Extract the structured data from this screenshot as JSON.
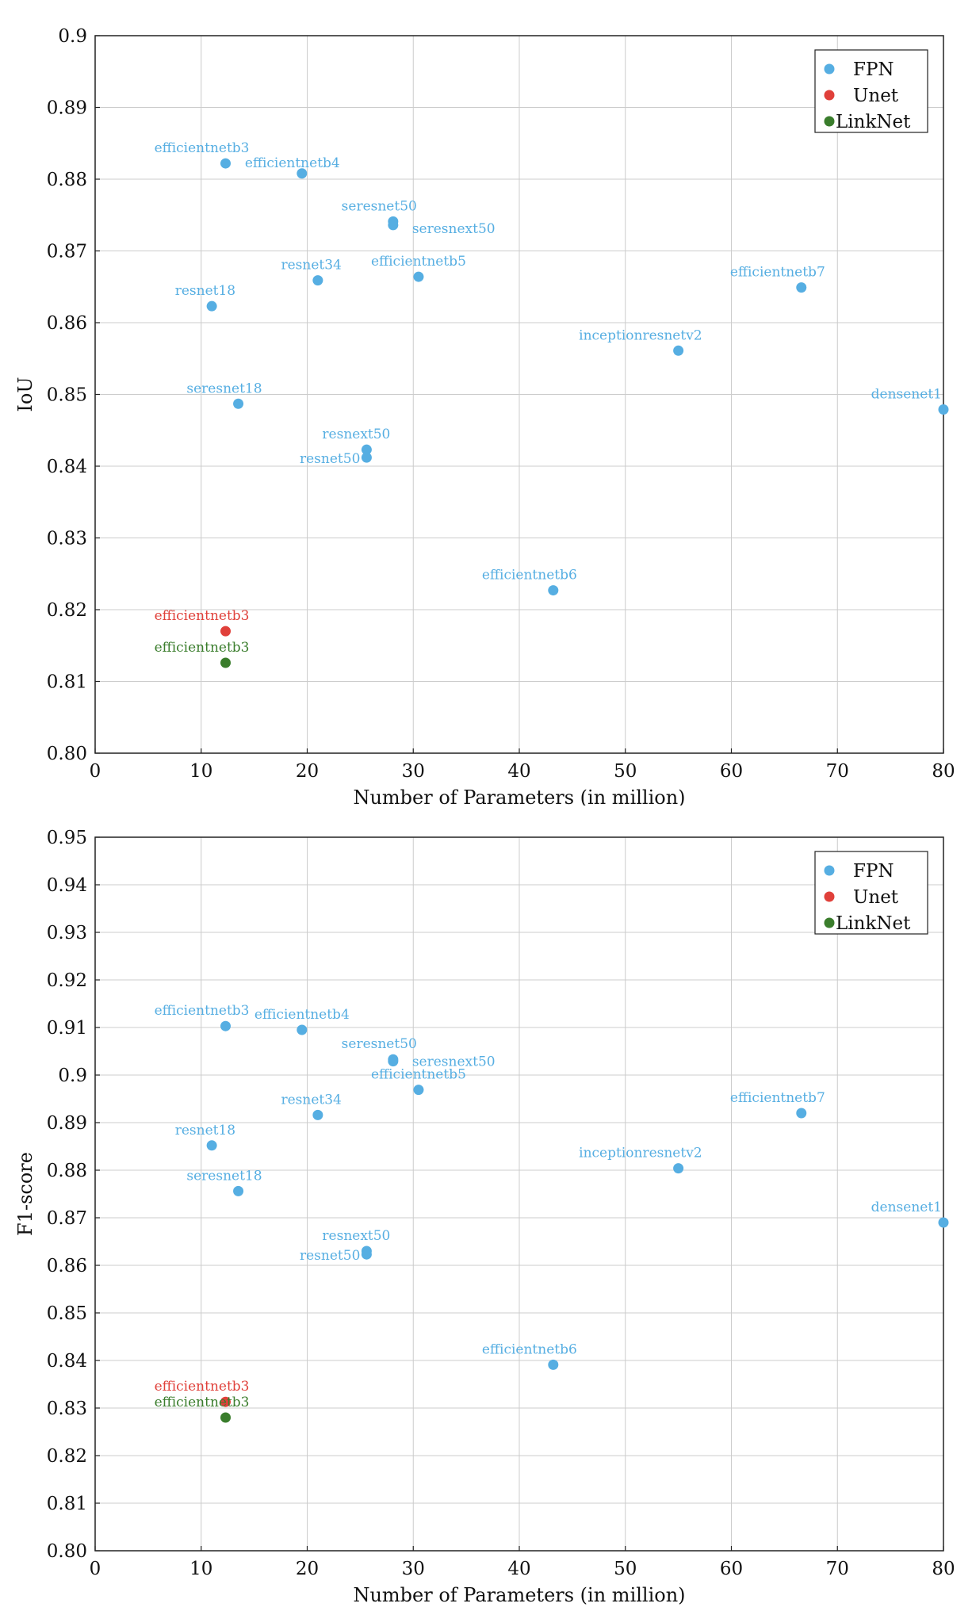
{
  "colors": {
    "FPN": "#56aee2",
    "Unet": "#e0403a",
    "LinkNet": "#3a7d2c"
  },
  "chart_data": [
    {
      "type": "scatter",
      "xlabel": "Number of Parameters (in million)",
      "ylabel": "IoU",
      "xlim": [
        0,
        80
      ],
      "ylim": [
        0.8,
        0.9
      ],
      "xticks": [
        0,
        10,
        20,
        30,
        40,
        50,
        60,
        70,
        80
      ],
      "yticks": [
        0.8,
        0.81,
        0.82,
        0.83,
        0.84,
        0.85,
        0.86,
        0.87,
        0.88,
        0.89,
        0.9
      ],
      "ytick_labels": [
        "0.80",
        "0.81",
        "0.82",
        "0.83",
        "0.84",
        "0.85",
        "0.86",
        "0.87",
        "0.88",
        "0.89",
        "0.9"
      ],
      "grid": true,
      "legend": {
        "position": "top-right",
        "entries": [
          "FPN",
          "Unet",
          "LinkNet"
        ]
      },
      "points": [
        {
          "series": "FPN",
          "label": "efficientnetb3",
          "x": 12.3,
          "y": 0.8822,
          "anchor": "above-left"
        },
        {
          "series": "FPN",
          "label": "efficientnetb4",
          "x": 19.5,
          "y": 0.8808,
          "anchor": "right-up"
        },
        {
          "series": "FPN",
          "label": "seresnet50",
          "x": 28.1,
          "y": 0.8741,
          "anchor": "above-left"
        },
        {
          "series": "FPN",
          "label": "seresnext50",
          "x": 28.1,
          "y": 0.8736,
          "anchor": "right-down"
        },
        {
          "series": "FPN",
          "label": "resnet34",
          "x": 21.0,
          "y": 0.8659,
          "anchor": "above-left"
        },
        {
          "series": "FPN",
          "label": "efficientnetb5",
          "x": 30.5,
          "y": 0.8664,
          "anchor": "above"
        },
        {
          "series": "FPN",
          "label": "resnet18",
          "x": 11.0,
          "y": 0.8623,
          "anchor": "above-left"
        },
        {
          "series": "FPN",
          "label": "efficientnetb7",
          "x": 66.6,
          "y": 0.8649,
          "anchor": "above-left"
        },
        {
          "series": "FPN",
          "label": "inceptionresnetv2",
          "x": 55.0,
          "y": 0.8561,
          "anchor": "above-left"
        },
        {
          "series": "FPN",
          "label": "seresnet18",
          "x": 13.5,
          "y": 0.8487,
          "anchor": "above-left"
        },
        {
          "series": "FPN",
          "label": "densenet1",
          "x": 80.0,
          "y": 0.8479,
          "anchor": "above-left"
        },
        {
          "series": "FPN",
          "label": "resnext50",
          "x": 25.6,
          "y": 0.8423,
          "anchor": "above-left"
        },
        {
          "series": "FPN",
          "label": "resnet50",
          "x": 25.6,
          "y": 0.8412,
          "anchor": "left"
        },
        {
          "series": "FPN",
          "label": "efficientnetb6",
          "x": 43.2,
          "y": 0.8227,
          "anchor": "above-left"
        },
        {
          "series": "Unet",
          "label": "efficientnetb3",
          "x": 12.3,
          "y": 0.817,
          "anchor": "above-left"
        },
        {
          "series": "LinkNet",
          "label": "efficientnetb3",
          "x": 12.3,
          "y": 0.8126,
          "anchor": "above-left"
        }
      ]
    },
    {
      "type": "scatter",
      "xlabel": "Number of Parameters (in million)",
      "ylabel": "F1-score",
      "xlim": [
        0,
        80
      ],
      "ylim": [
        0.8,
        0.95
      ],
      "xticks": [
        0,
        10,
        20,
        30,
        40,
        50,
        60,
        70,
        80
      ],
      "yticks": [
        0.8,
        0.81,
        0.82,
        0.83,
        0.84,
        0.85,
        0.86,
        0.87,
        0.88,
        0.89,
        0.9,
        0.91,
        0.92,
        0.93,
        0.94,
        0.95
      ],
      "ytick_labels": [
        "0.80",
        "0.81",
        "0.82",
        "0.83",
        "0.84",
        "0.85",
        "0.86",
        "0.87",
        "0.88",
        "0.89",
        "0.9",
        "0.91",
        "0.92",
        "0.93",
        "0.94",
        "0.95"
      ],
      "grid": true,
      "legend": {
        "position": "top-right",
        "entries": [
          "FPN",
          "Unet",
          "LinkNet"
        ]
      },
      "points": [
        {
          "series": "FPN",
          "label": "efficientnetb3",
          "x": 12.3,
          "y": 0.9103,
          "anchor": "above-left"
        },
        {
          "series": "FPN",
          "label": "efficientnetb4",
          "x": 19.5,
          "y": 0.9095,
          "anchor": "above"
        },
        {
          "series": "FPN",
          "label": "seresnet50",
          "x": 28.1,
          "y": 0.9033,
          "anchor": "above-left"
        },
        {
          "series": "FPN",
          "label": "seresnext50",
          "x": 28.1,
          "y": 0.9029,
          "anchor": "right"
        },
        {
          "series": "FPN",
          "label": "efficientnetb5",
          "x": 30.5,
          "y": 0.8969,
          "anchor": "above"
        },
        {
          "series": "FPN",
          "label": "resnet34",
          "x": 21.0,
          "y": 0.8916,
          "anchor": "above-left"
        },
        {
          "series": "FPN",
          "label": "efficientnetb7",
          "x": 66.6,
          "y": 0.892,
          "anchor": "above-left"
        },
        {
          "series": "FPN",
          "label": "resnet18",
          "x": 11.0,
          "y": 0.8852,
          "anchor": "above-left"
        },
        {
          "series": "FPN",
          "label": "inceptionresnetv2",
          "x": 55.0,
          "y": 0.8804,
          "anchor": "above-left"
        },
        {
          "series": "FPN",
          "label": "seresnet18",
          "x": 13.5,
          "y": 0.8756,
          "anchor": "above-left"
        },
        {
          "series": "FPN",
          "label": "densenet1",
          "x": 80.0,
          "y": 0.869,
          "anchor": "above-left"
        },
        {
          "series": "FPN",
          "label": "resnext50",
          "x": 25.6,
          "y": 0.863,
          "anchor": "above-left"
        },
        {
          "series": "FPN",
          "label": "resnet50",
          "x": 25.6,
          "y": 0.8623,
          "anchor": "left"
        },
        {
          "series": "FPN",
          "label": "efficientnetb6",
          "x": 43.2,
          "y": 0.8391,
          "anchor": "above-left"
        },
        {
          "series": "Unet",
          "label": "efficientnetb3",
          "x": 12.3,
          "y": 0.8313,
          "anchor": "above-left"
        },
        {
          "series": "LinkNet",
          "label": "efficientnetb3",
          "x": 12.3,
          "y": 0.828,
          "anchor": "above-left"
        }
      ]
    }
  ]
}
